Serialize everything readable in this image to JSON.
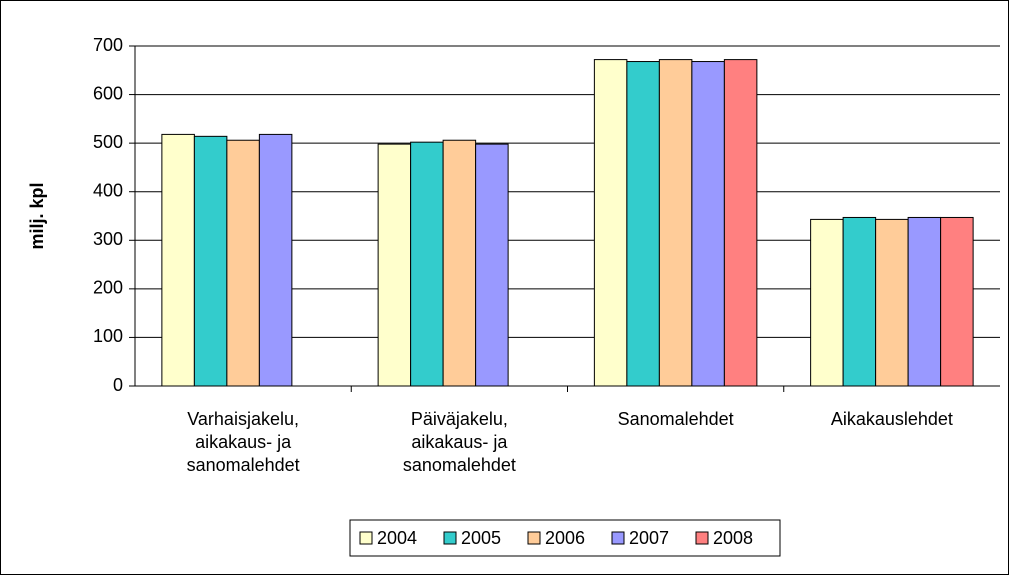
{
  "chart_data": {
    "type": "bar",
    "ylabel": "milj. kpl",
    "categories": [
      "Varhaisjakelu, aikakaus- ja sanomalehdet",
      "Päiväjakelu, aikakaus- ja sanomalehdet",
      "Sanomalehdet",
      "Aikakauslehdet"
    ],
    "series": [
      {
        "name": "2004",
        "color": "#ffffcc",
        "values": [
          518,
          498,
          672,
          343
        ]
      },
      {
        "name": "2005",
        "color": "#33cccc",
        "values": [
          514,
          502,
          668,
          347
        ]
      },
      {
        "name": "2006",
        "color": "#ffcc99",
        "values": [
          506,
          506,
          672,
          343
        ]
      },
      {
        "name": "2007",
        "color": "#9999ff",
        "values": [
          518,
          498,
          668,
          347
        ]
      },
      {
        "name": "2008",
        "color": "#ff8080",
        "values": [
          null,
          null,
          672,
          347
        ]
      }
    ],
    "ylim": [
      0,
      700
    ],
    "yticks": [
      0,
      100,
      200,
      300,
      400,
      500,
      600,
      700
    ],
    "grid": true,
    "legend": "bottom"
  }
}
